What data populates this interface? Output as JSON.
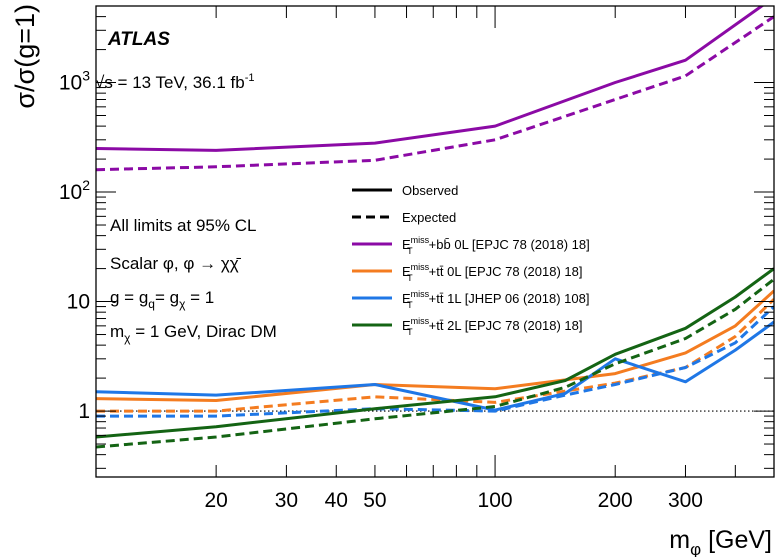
{
  "chart_data": {
    "type": "line",
    "experiment": "ATLAS",
    "energy_label": "√s = 13 TeV, 36.1 fb",
    "energy_label_sup": "-1",
    "xlabel": "m",
    "xlabel_sub": "φ",
    "xlabel_unit": " [GeV]",
    "ylabel": "σ/σ(g=1)",
    "x_scale": "log",
    "y_scale": "log",
    "xlim": [
      10,
      500
    ],
    "ylim": [
      0.25,
      5000
    ],
    "x_ticks": [
      {
        "v": 20,
        "label": "20"
      },
      {
        "v": 30,
        "label": "30"
      },
      {
        "v": 40,
        "label": "40"
      },
      {
        "v": 50,
        "label": "50"
      },
      {
        "v": 100,
        "label": "100"
      },
      {
        "v": 200,
        "label": "200"
      },
      {
        "v": 300,
        "label": "300"
      }
    ],
    "y_ticks": [
      {
        "v": 1,
        "label": "1",
        "sup": ""
      },
      {
        "v": 10,
        "label": "10",
        "sup": ""
      },
      {
        "v": 100,
        "label": "10",
        "sup": "2"
      },
      {
        "v": 1000,
        "label": "10",
        "sup": "3"
      }
    ],
    "reference_line": 1,
    "annotations": [
      {
        "text": "All limits at 95% CL"
      },
      {
        "text": "Scalar φ, φ → χχ̄"
      },
      {
        "text": "g = g",
        "sub1": "q",
        "mid": "= g",
        "sub2": "χ",
        "end": " = 1"
      },
      {
        "text": "m",
        "sub1": "χ",
        "end": " = 1 GeV, Dirac DM"
      }
    ],
    "legend_placement": "center-right",
    "legend": [
      {
        "style": "solid",
        "label": "Observed"
      },
      {
        "style": "dashed",
        "label": "Expected"
      }
    ],
    "series": [
      {
        "name": "+bb̄ 0L [EPJC 78 (2018) 18]",
        "color": "#8B0AA5",
        "x": [
          10,
          20,
          50,
          100,
          200,
          300,
          500
        ],
        "observed": [
          250,
          240,
          280,
          400,
          1000,
          1600,
          6000
        ],
        "expected": [
          160,
          170,
          195,
          300,
          700,
          1150,
          4000
        ]
      },
      {
        "name": "+tt̄ 0L [EPJC 78 (2018) 18]",
        "color": "#F47C20",
        "x": [
          10,
          20,
          50,
          100,
          200,
          300,
          400,
          500
        ],
        "observed": [
          1.3,
          1.25,
          1.75,
          1.6,
          2.2,
          3.4,
          6.0,
          12.5
        ],
        "expected": [
          1.0,
          1.0,
          1.35,
          1.2,
          1.8,
          2.5,
          4.8,
          10.5
        ]
      },
      {
        "name": "+tt̄ 1L [JHEP 06 (2018) 108]",
        "color": "#1F77E6",
        "x": [
          10,
          20,
          50,
          100,
          150,
          200,
          300,
          400,
          500
        ],
        "observed": [
          1.5,
          1.4,
          1.75,
          1.02,
          1.45,
          3.0,
          1.85,
          3.6,
          6.5
        ],
        "expected": [
          0.9,
          0.9,
          1.05,
          1.0,
          1.4,
          1.75,
          2.5,
          4.2,
          9.0
        ]
      },
      {
        "name": "+tt̄ 2L [EPJC 78 (2018) 18]",
        "color": "#146414",
        "x": [
          10,
          20,
          50,
          100,
          150,
          200,
          300,
          400,
          500
        ],
        "observed": [
          0.58,
          0.72,
          1.05,
          1.35,
          1.9,
          3.3,
          5.7,
          11.0,
          20.0
        ],
        "expected": [
          0.47,
          0.58,
          0.85,
          1.1,
          1.65,
          2.7,
          4.6,
          8.5,
          16.0
        ]
      }
    ],
    "series_prefix": "E",
    "series_prefix_sup": "miss",
    "series_prefix_sub": "T"
  }
}
